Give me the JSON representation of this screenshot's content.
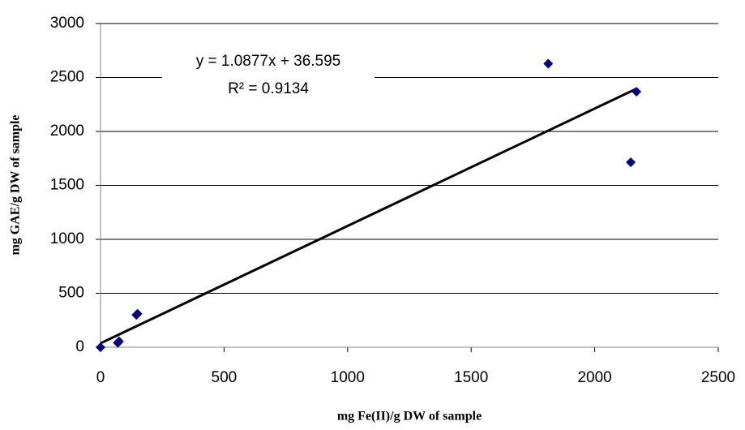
{
  "chart_data": {
    "type": "scatter",
    "x_label": "mg Fe(II)/g DW of sample",
    "y_label": "mg GAE/g DW of sample",
    "x": [
      0,
      70,
      75,
      145,
      150,
      1812,
      2169,
      2146
    ],
    "values": [
      0,
      40,
      55,
      300,
      310,
      2628,
      2368,
      1714
    ],
    "color": "#000080",
    "xlim": [
      0,
      2500
    ],
    "xticks": [
      0,
      500,
      1000,
      1500,
      2000,
      2500
    ],
    "ylim": [
      0,
      3000
    ],
    "yticks": [
      0,
      500,
      1000,
      1500,
      2000,
      2500,
      3000
    ],
    "grid": true,
    "trendline": {
      "slope": 1.0877,
      "intercept": 36.595,
      "color": "#000000",
      "equation_label": "y = 1.0877x + 36.595",
      "r_squared_label": "R² = 0.9134"
    }
  }
}
